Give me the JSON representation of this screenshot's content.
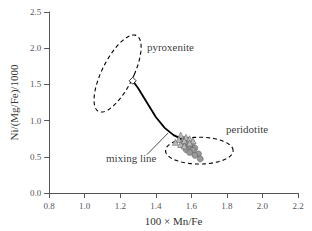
{
  "chart_data": {
    "type": "scatter",
    "xlabel": "100 × Mn/Fe",
    "ylabel": "Ni/(Mg/Fe)/1000",
    "xlim": [
      0.8,
      2.2
    ],
    "ylim": [
      0,
      2.5
    ],
    "xticks": [
      0.8,
      {
        "value": 1.0,
        "label": "1.0"
      },
      1.2,
      1.4,
      1.6,
      1.8,
      {
        "value": 2.0,
        "label": "2.0"
      },
      2.2
    ],
    "yticks": [
      {
        "value": 0,
        "label": "0.0"
      },
      0.5,
      {
        "value": 1.0,
        "label": "1.0"
      },
      1.5,
      {
        "value": 2.0,
        "label": "2.0"
      },
      2.5
    ],
    "grid": false,
    "series": [
      {
        "type": "line",
        "color": "#000000",
        "line_style": "solid",
        "x": [
          1.27,
          1.3,
          1.35,
          1.4,
          1.45,
          1.5,
          1.55,
          1.57
        ],
        "values": [
          1.55,
          1.45,
          1.25,
          1.05,
          0.9,
          0.8,
          0.74,
          0.72
        ]
      },
      {
        "type": "scatter",
        "marker": "circle",
        "color": "#999999",
        "x": [
          1.56,
          1.58,
          1.6,
          1.62,
          1.55,
          1.58,
          1.61,
          1.64,
          1.57,
          1.59,
          1.62,
          1.65
        ],
        "values": [
          0.74,
          0.7,
          0.67,
          0.62,
          0.66,
          0.62,
          0.59,
          0.54,
          0.6,
          0.56,
          0.52,
          0.47
        ]
      },
      {
        "type": "scatter",
        "marker": "triangle",
        "color": "#bbbbbb",
        "x": [
          1.54,
          1.57,
          1.59,
          1.61,
          1.53,
          1.56,
          1.59,
          1.51,
          1.54,
          1.56
        ],
        "values": [
          0.8,
          0.77,
          0.75,
          0.72,
          0.74,
          0.72,
          0.69,
          0.7,
          0.67,
          0.65
        ]
      },
      {
        "type": "scatter",
        "marker": "diamond",
        "color": "#ffffff",
        "x": [
          1.27
        ],
        "values": [
          1.55
        ]
      }
    ],
    "ellipses": [
      {
        "cx": 1.185,
        "cy": 1.65,
        "width": 0.19,
        "height": 1.08,
        "angle": -10,
        "color": "#000000",
        "line_style": "dashed"
      },
      {
        "cx": 1.645,
        "cy": 0.585,
        "width": 0.38,
        "height": 0.37,
        "angle": 0,
        "color": "#000000",
        "line_style": "dashed"
      }
    ],
    "lines": [
      {
        "x": [
          1.35,
          1.47
        ],
        "values": [
          0.53,
          0.83
        ],
        "color": "#000000"
      }
    ],
    "annotations": [
      {
        "text": "pyroxenite",
        "x": 1.35,
        "y": 2.02
      },
      {
        "text": "peridotite",
        "x": 1.795,
        "y": 0.88
      },
      {
        "text": "mixing line",
        "x": 1.12,
        "y": 0.48
      }
    ]
  }
}
